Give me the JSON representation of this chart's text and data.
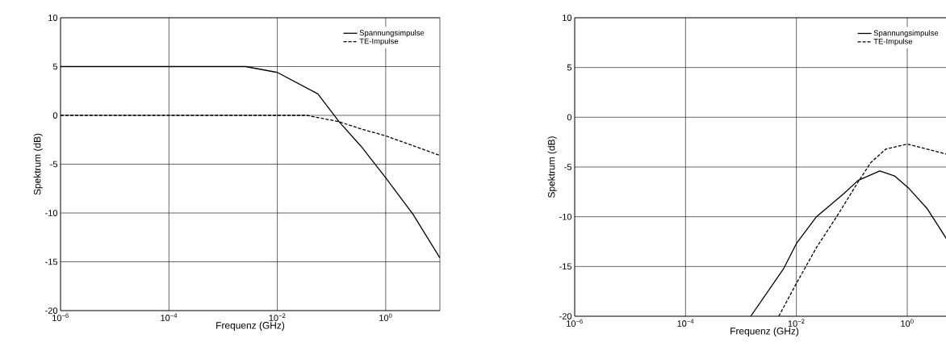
{
  "chart_data": [
    {
      "type": "line",
      "xlabel": "Frequenz (GHz)",
      "ylabel": "Spektrum (dB)",
      "log": "x",
      "grid": true,
      "legend": "top right",
      "marker": "none",
      "xlim": [
        1e-06,
        10
      ],
      "ylim": [
        -20,
        10
      ],
      "xticks": [
        {
          "value": 1e-06,
          "label": "10$^{−6}$"
        },
        {
          "value": 0.0001,
          "label": "10$^{−4}$"
        },
        {
          "value": 0.01,
          "label": "10$^{−2}$"
        },
        {
          "value": 1,
          "label": "10$^{0}$"
        }
      ],
      "yticks": [
        -20,
        -15,
        -10,
        -5,
        0,
        5,
        10
      ],
      "series": [
        {
          "name": "Spannungsimpulse",
          "color": "#000000",
          "line_style": "solid",
          "x": [
            1e-06,
            0.001,
            0.0026,
            0.01,
            0.056,
            0.138,
            0.355,
            1,
            3.16,
            10
          ],
          "values": [
            5,
            5,
            5,
            4.4,
            2.2,
            -0.65,
            -3.2,
            -6.4,
            -10.1,
            -14.6
          ]
        },
        {
          "name": "TE-Impulse",
          "color": "#000000",
          "line_style": "dashed",
          "x": [
            1e-06,
            0.035,
            0.138,
            0.355,
            1,
            10
          ],
          "values": [
            0,
            0,
            -0.65,
            -1.4,
            -2.1,
            -4.1
          ]
        }
      ]
    },
    {
      "type": "line",
      "xlabel": "Frequenz (GHz)",
      "ylabel": "Spektrum (dB)",
      "log": "x",
      "grid": true,
      "legend": "top right",
      "marker": "none",
      "xlim": [
        1e-06,
        7
      ],
      "ylim": [
        -20,
        10
      ],
      "xticks": [
        {
          "value": 1e-06,
          "label": "10$^{−6}$"
        },
        {
          "value": 0.0001,
          "label": "10$^{−4}$"
        },
        {
          "value": 0.01,
          "label": "10$^{−2}$"
        },
        {
          "value": 1,
          "label": "10$^{0}$"
        }
      ],
      "yticks": [
        -20,
        -15,
        -10,
        -5,
        0,
        5,
        10
      ],
      "series": [
        {
          "name": "Spannungsimpulse",
          "color": "#000000",
          "line_style": "solid",
          "x": [
            0.0015,
            0.0059,
            0.01,
            0.023,
            0.071,
            0.13,
            0.32,
            0.59,
            1.05,
            2.3,
            7
          ],
          "values": [
            -20,
            -15.2,
            -12.7,
            -10,
            -7.7,
            -6.35,
            -5.4,
            -5.9,
            -7.1,
            -9.2,
            -13.4
          ]
        },
        {
          "name": "TE-Impulse",
          "color": "#000000",
          "line_style": "dashed",
          "x": [
            0.0048,
            0.01,
            0.023,
            0.056,
            0.13,
            0.22,
            0.41,
            1,
            2.3,
            7
          ],
          "values": [
            -20,
            -16.7,
            -13.1,
            -9.8,
            -6.5,
            -4.55,
            -3.2,
            -2.7,
            -3.2,
            -3.9
          ]
        }
      ]
    }
  ]
}
